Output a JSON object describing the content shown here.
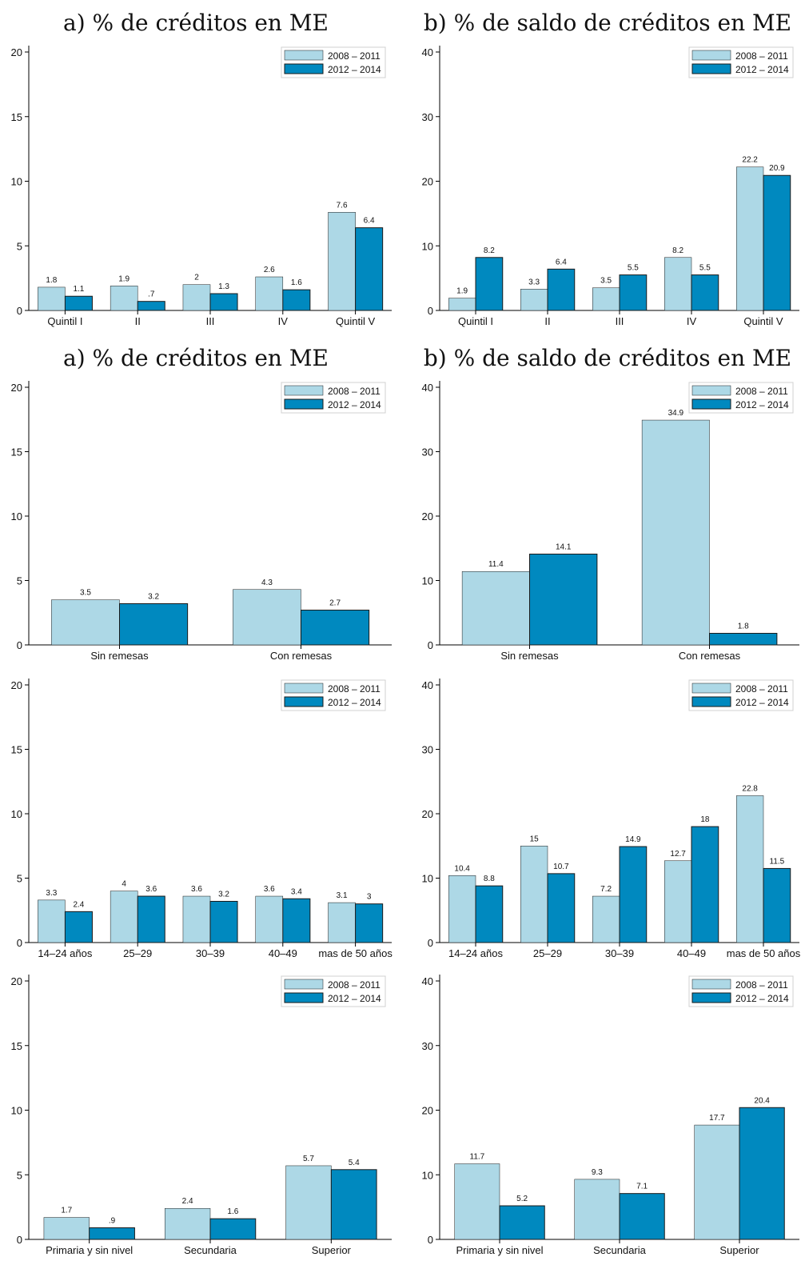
{
  "colors": {
    "series_1": "#add8e6",
    "series_2": "#0089bf",
    "bar_outline": "#1a1a1a",
    "legend_border": "#d0d0d0"
  },
  "chart_data": [
    {
      "type": "bar",
      "title": "a) % de créditos en ME",
      "categories": [
        "Quintil I",
        "II",
        "III",
        "IV",
        "Quintil V"
      ],
      "series": [
        {
          "name": "2008 – 2011",
          "values": [
            1.8,
            1.9,
            2,
            2.6,
            7.6
          ],
          "labels": [
            "1.8",
            "1.9",
            "2",
            "2.6",
            "7.6"
          ]
        },
        {
          "name": "2012 – 2014",
          "values": [
            1.1,
            0.7,
            1.3,
            1.6,
            6.4
          ],
          "labels": [
            "1.1",
            ".7",
            "1.3",
            "1.6",
            "6.4"
          ]
        }
      ],
      "ylim": [
        0,
        20
      ],
      "yticks": [
        0,
        5,
        10,
        15,
        20
      ],
      "grid": false,
      "legend": "top-right"
    },
    {
      "type": "bar",
      "title": "b) % de saldo de créditos en ME",
      "categories": [
        "Quintil I",
        "II",
        "III",
        "IV",
        "Quintil V"
      ],
      "series": [
        {
          "name": "2008 – 2011",
          "values": [
            1.9,
            3.3,
            3.5,
            8.2,
            22.2
          ],
          "labels": [
            "1.9",
            "3.3",
            "3.5",
            "8.2",
            "22.2"
          ]
        },
        {
          "name": "2012 – 2014",
          "values": [
            8.2,
            6.4,
            5.5,
            5.5,
            20.9
          ],
          "labels": [
            "8.2",
            "6.4",
            "5.5",
            "5.5",
            "20.9"
          ]
        }
      ],
      "ylim": [
        0,
        40
      ],
      "yticks": [
        0,
        10,
        20,
        30,
        40
      ],
      "grid": false,
      "legend": "top-right"
    },
    {
      "type": "bar",
      "title": "a) % de créditos en ME",
      "categories": [
        "Sin remesas",
        "Con remesas"
      ],
      "series": [
        {
          "name": "2008 – 2011",
          "values": [
            3.5,
            4.3
          ],
          "labels": [
            "3.5",
            "4.3"
          ]
        },
        {
          "name": "2012 – 2014",
          "values": [
            3.2,
            2.7
          ],
          "labels": [
            "3.2",
            "2.7"
          ]
        }
      ],
      "ylim": [
        0,
        20
      ],
      "yticks": [
        0,
        5,
        10,
        15,
        20
      ],
      "grid": false,
      "legend": "top-right"
    },
    {
      "type": "bar",
      "title": "b) % de saldo de créditos en ME",
      "categories": [
        "Sin remesas",
        "Con remesas"
      ],
      "series": [
        {
          "name": "2008 – 2011",
          "values": [
            11.4,
            34.9
          ],
          "labels": [
            "11.4",
            "34.9"
          ]
        },
        {
          "name": "2012 – 2014",
          "values": [
            14.1,
            1.8
          ],
          "labels": [
            "14.1",
            "1.8"
          ]
        }
      ],
      "ylim": [
        0,
        40
      ],
      "yticks": [
        0,
        10,
        20,
        30,
        40
      ],
      "grid": false,
      "legend": "top-right"
    },
    {
      "type": "bar",
      "title": "",
      "categories": [
        "14–24 años",
        "25–29",
        "30–39",
        "40–49",
        "mas de 50 años"
      ],
      "series": [
        {
          "name": "2008 – 2011",
          "values": [
            3.3,
            4,
            3.6,
            3.6,
            3.1
          ],
          "labels": [
            "3.3",
            "4",
            "3.6",
            "3.6",
            "3.1"
          ]
        },
        {
          "name": "2012 – 2014",
          "values": [
            2.4,
            3.6,
            3.2,
            3.4,
            3
          ],
          "labels": [
            "2.4",
            "3.6",
            "3.2",
            "3.4",
            "3"
          ]
        }
      ],
      "ylim": [
        0,
        20
      ],
      "yticks": [
        0,
        5,
        10,
        15,
        20
      ],
      "grid": false,
      "legend": "top-right"
    },
    {
      "type": "bar",
      "title": "",
      "categories": [
        "14–24 años",
        "25–29",
        "30–39",
        "40–49",
        "mas de 50 años"
      ],
      "series": [
        {
          "name": "2008 – 2011",
          "values": [
            10.4,
            15,
            7.2,
            12.7,
            22.8
          ],
          "labels": [
            "10.4",
            "15",
            "7.2",
            "12.7",
            "22.8"
          ]
        },
        {
          "name": "2012 – 2014",
          "values": [
            8.8,
            10.7,
            14.9,
            18,
            11.5
          ],
          "labels": [
            "8.8",
            "10.7",
            "14.9",
            "18",
            "11.5"
          ]
        }
      ],
      "ylim": [
        0,
        40
      ],
      "yticks": [
        0,
        10,
        20,
        30,
        40
      ],
      "grid": false,
      "legend": "top-right"
    },
    {
      "type": "bar",
      "title": "",
      "categories": [
        "Primaria y sin nivel",
        "Secundaria",
        "Superior"
      ],
      "series": [
        {
          "name": "2008 – 2011",
          "values": [
            1.7,
            2.4,
            5.7
          ],
          "labels": [
            "1.7",
            "2.4",
            "5.7"
          ]
        },
        {
          "name": "2012 – 2014",
          "values": [
            0.9,
            1.6,
            5.4
          ],
          "labels": [
            ".9",
            "1.6",
            "5.4"
          ]
        }
      ],
      "ylim": [
        0,
        20
      ],
      "yticks": [
        0,
        5,
        10,
        15,
        20
      ],
      "grid": false,
      "legend": "top-right"
    },
    {
      "type": "bar",
      "title": "",
      "categories": [
        "Primaria y sin nivel",
        "Secundaria",
        "Superior"
      ],
      "series": [
        {
          "name": "2008 – 2011",
          "values": [
            11.7,
            9.3,
            17.7
          ],
          "labels": [
            "11.7",
            "9.3",
            "17.7"
          ]
        },
        {
          "name": "2012 – 2014",
          "values": [
            5.2,
            7.1,
            20.4
          ],
          "labels": [
            "5.2",
            "7.1",
            "20.4"
          ]
        }
      ],
      "ylim": [
        0,
        40
      ],
      "yticks": [
        0,
        10,
        20,
        30,
        40
      ],
      "grid": false,
      "legend": "top-right"
    }
  ]
}
